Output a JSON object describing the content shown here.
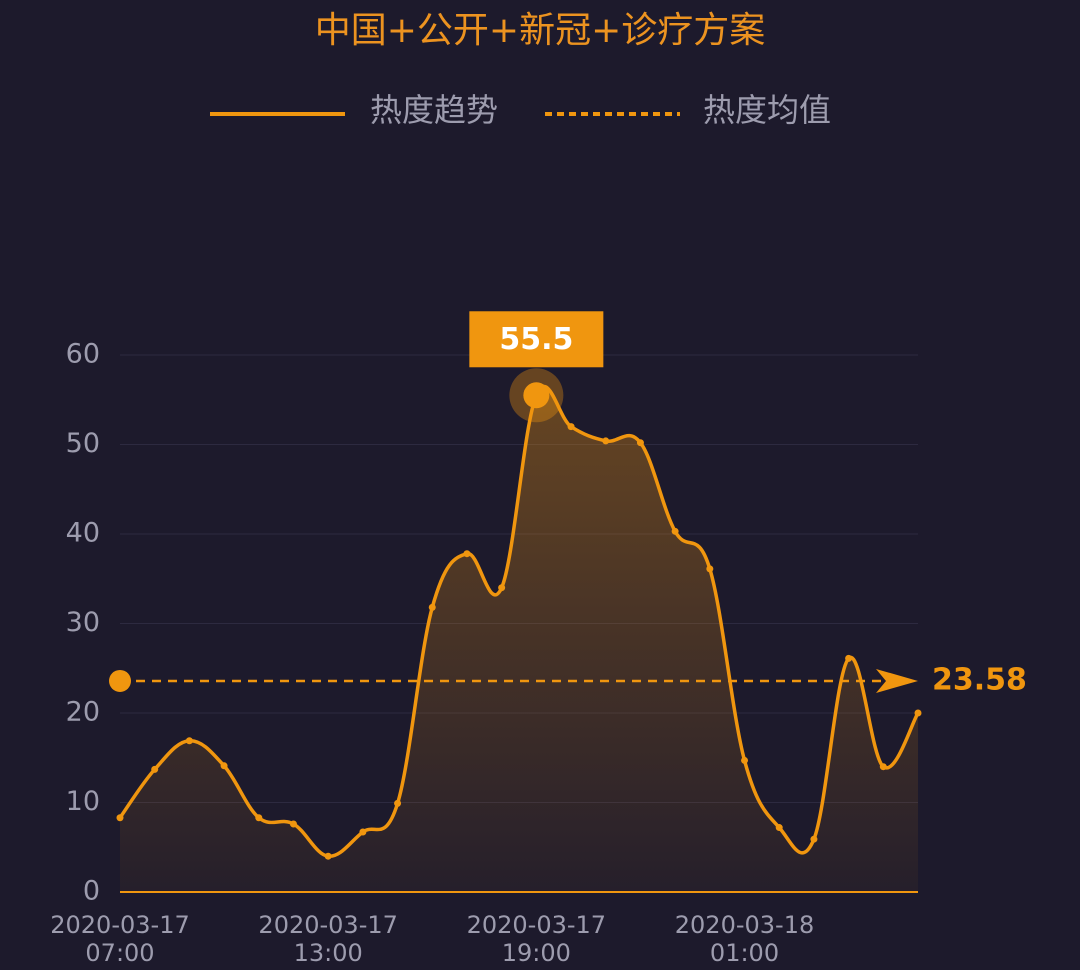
{
  "chart_data": {
    "type": "line",
    "title": "中国+公开+新冠+诊疗方案",
    "categories": [
      "2020-03-17 07:00",
      null,
      null,
      null,
      null,
      null,
      "2020-03-17 13:00",
      null,
      null,
      null,
      null,
      null,
      "2020-03-17 19:00",
      null,
      null,
      null,
      null,
      null,
      "2020-03-18 01:00",
      null,
      null,
      null,
      null,
      null
    ],
    "series": [
      {
        "name": "热度趋势",
        "color": "#f0960f",
        "values": [
          8.3,
          13.7,
          16.9,
          14.1,
          8.3,
          7.6,
          4.0,
          6.7,
          9.9,
          31.8,
          37.8,
          34.0,
          55.5,
          52.0,
          50.4,
          50.2,
          40.3,
          36.1,
          14.7,
          7.2,
          5.9,
          26.1,
          14.0,
          20.0
        ]
      }
    ],
    "reference_lines": [
      {
        "name": "热度均值",
        "value": 23.58,
        "color": "#f0960f"
      }
    ],
    "ylim": [
      0,
      60
    ],
    "yticks": [
      0,
      10,
      20,
      30,
      40,
      50,
      60
    ],
    "grid": true,
    "legend": "top"
  }
}
